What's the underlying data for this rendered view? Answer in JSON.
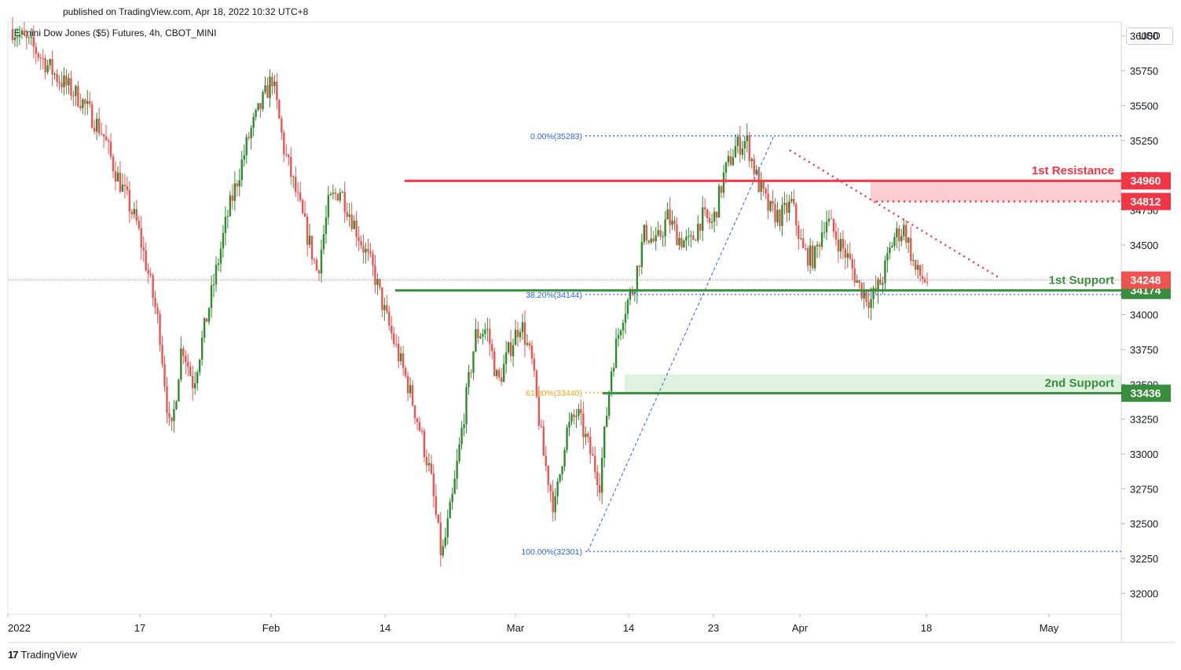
{
  "header": {
    "published_note": "published on TradingView.com, Apr 18, 2022 10:32 UTC+8",
    "symbol": "E-mini Dow Jones ($5) Futures, 4h, CBOT_MINI",
    "currency": "USD"
  },
  "footer": {
    "brand": "TradingView"
  },
  "colors": {
    "up": "#26a69a",
    "up_dark": "#2e8b2e",
    "down": "#ef5350",
    "resistance": "#f23645",
    "support": "#388e3c",
    "fib": "#2962ff",
    "fib_gold": "#f7a21b"
  },
  "chart_data": {
    "type": "candlestick",
    "ylim": [
      31850,
      36100
    ],
    "y_ticks": [
      32000,
      32250,
      32500,
      32750,
      33000,
      33250,
      33500,
      33750,
      34000,
      34250,
      34500,
      34750,
      35000,
      35250,
      35500,
      35750,
      36000
    ],
    "x_tick_labels": [
      "2022",
      "17",
      "Feb",
      "14",
      "Mar",
      "14",
      "23",
      "Apr",
      "18",
      "May"
    ],
    "current_price": 34248,
    "levels": [
      {
        "name": "1st Resistance",
        "label": "1st Resistance",
        "price": 34960,
        "kind": "resistance",
        "badge": "34960"
      },
      {
        "name": "1st Resistance zone",
        "label": "",
        "price": 34812,
        "kind": "resistance-dotted",
        "badge": "34812"
      },
      {
        "name": "1st Support",
        "label": "1st Support",
        "price": 34174,
        "kind": "support",
        "badge": "34174"
      },
      {
        "name": "2nd Support",
        "label": "2nd Support",
        "price": 33436,
        "kind": "support",
        "badge": "33436"
      }
    ],
    "fib_levels": [
      {
        "label": "0.00%(35283)",
        "price": 35283
      },
      {
        "label": "38.20%(34144)",
        "price": 34144
      },
      {
        "label": "61.80%(33440)",
        "price": 33440
      },
      {
        "label": "100.00%(32301)",
        "price": 32301
      }
    ],
    "price_path": [
      [
        0,
        36050
      ],
      [
        2,
        35900
      ],
      [
        4,
        35700
      ],
      [
        6,
        35550
      ],
      [
        8,
        35300
      ],
      [
        9,
        35050
      ],
      [
        11,
        34650
      ],
      [
        12,
        34300
      ],
      [
        13,
        33900
      ],
      [
        14,
        33100
      ],
      [
        15,
        33800
      ],
      [
        16,
        33500
      ],
      [
        17,
        33900
      ],
      [
        18,
        34300
      ],
      [
        19,
        34700
      ],
      [
        20,
        35000
      ],
      [
        21,
        35300
      ],
      [
        22,
        35500
      ],
      [
        23,
        35700
      ],
      [
        24,
        35200
      ],
      [
        25,
        34900
      ],
      [
        26,
        34600
      ],
      [
        27,
        34300
      ],
      [
        28,
        34800
      ],
      [
        29,
        34900
      ],
      [
        30,
        34700
      ],
      [
        31,
        34500
      ],
      [
        32,
        34300
      ],
      [
        33,
        34000
      ],
      [
        34,
        33750
      ],
      [
        35,
        33500
      ],
      [
        36,
        33200
      ],
      [
        37,
        32850
      ],
      [
        38,
        32250
      ],
      [
        39,
        32700
      ],
      [
        40,
        33300
      ],
      [
        41,
        33850
      ],
      [
        42,
        33900
      ],
      [
        43,
        33500
      ],
      [
        44,
        33750
      ],
      [
        45,
        33950
      ],
      [
        46,
        33650
      ],
      [
        47,
        33000
      ],
      [
        48,
        32600
      ],
      [
        49,
        33150
      ],
      [
        50,
        33300
      ],
      [
        51,
        33050
      ],
      [
        52,
        32800
      ],
      [
        53,
        33600
      ],
      [
        54,
        34000
      ],
      [
        55,
        34200
      ],
      [
        56,
        34600
      ],
      [
        57,
        34500
      ],
      [
        58,
        34700
      ],
      [
        59,
        34550
      ],
      [
        60,
        34500
      ],
      [
        61,
        34700
      ],
      [
        62,
        34650
      ],
      [
        63,
        35000
      ],
      [
        64,
        35200
      ],
      [
        65,
        35250
      ],
      [
        66,
        34950
      ],
      [
        67,
        34750
      ],
      [
        68,
        34700
      ],
      [
        69,
        34800
      ],
      [
        70,
        34450
      ],
      [
        71,
        34400
      ],
      [
        72,
        34700
      ],
      [
        73,
        34550
      ],
      [
        74,
        34400
      ],
      [
        75,
        34200
      ],
      [
        76,
        34100
      ],
      [
        77,
        34250
      ],
      [
        78,
        34550
      ],
      [
        79,
        34620
      ],
      [
        80,
        34300
      ],
      [
        81,
        34240
      ]
    ]
  }
}
